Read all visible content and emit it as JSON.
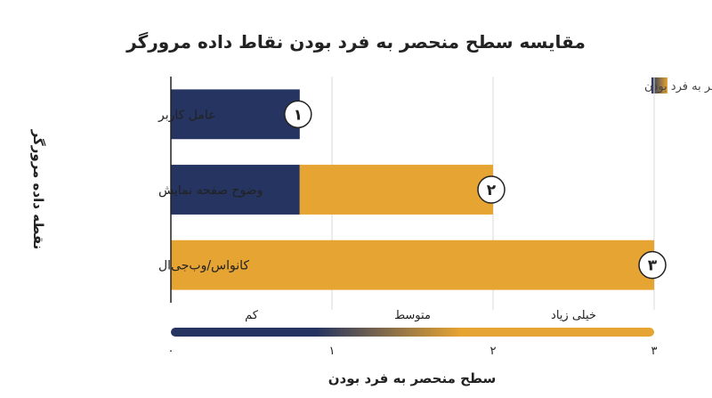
{
  "chart_data": {
    "type": "bar",
    "orientation": "horizontal",
    "title": "مقایسه سطح منحصر به فرد بودن نقاط داده مرورگر",
    "xlabel": "سطح منحصر به فرد بودن",
    "ylabel": "نقطه داده مرورگر",
    "categories": [
      "عامل کاربر",
      "وضوح صفحه نمایش",
      "کانواس/وب‌جی‌ال"
    ],
    "values": [
      1,
      2,
      3
    ],
    "value_labels": [
      "۱",
      "۲",
      "۳"
    ],
    "xlim": [
      0,
      3
    ],
    "xticks": [
      0,
      1,
      2,
      3
    ],
    "xtick_labels": [
      "۰",
      "۱",
      "۲",
      "۳"
    ],
    "levels": [
      {
        "label": "کم",
        "from": 0,
        "to": 1
      },
      {
        "label": "متوسط",
        "from": 1,
        "to": 2
      },
      {
        "label": "خیلی زیاد",
        "from": 2,
        "to": 3
      }
    ],
    "legend": {
      "label": "سطح منحصر به فرد بودن",
      "position": "top-right"
    },
    "grid": "vertical",
    "colors": {
      "low": "#253460",
      "high": "#e6a433",
      "grid": "#d9d9d9",
      "axis": "#222222",
      "text": "#222222"
    }
  }
}
